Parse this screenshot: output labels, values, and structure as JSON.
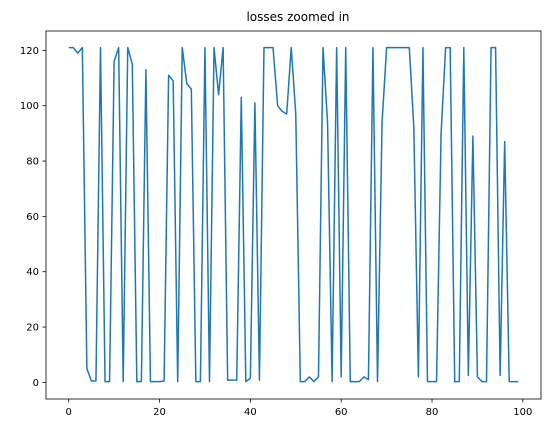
{
  "chart_data": {
    "type": "line",
    "title": "losses zoomed in",
    "xlabel": "",
    "ylabel": "",
    "xlim": [
      -5,
      104
    ],
    "ylim": [
      -6,
      127
    ],
    "xticks": [
      0,
      20,
      40,
      60,
      80,
      100
    ],
    "yticks": [
      0,
      20,
      40,
      60,
      80,
      100,
      120
    ],
    "grid": false,
    "legend": null,
    "series": [
      {
        "color": "#1f77b4",
        "x": [
          0,
          1,
          2,
          3,
          4,
          5,
          6,
          7,
          8,
          9,
          10,
          11,
          12,
          13,
          14,
          15,
          16,
          17,
          18,
          19,
          20,
          21,
          22,
          23,
          24,
          25,
          26,
          27,
          28,
          29,
          30,
          31,
          32,
          33,
          34,
          35,
          36,
          37,
          38,
          39,
          40,
          41,
          42,
          43,
          44,
          45,
          46,
          47,
          48,
          49,
          50,
          51,
          52,
          53,
          54,
          55,
          56,
          57,
          58,
          59,
          60,
          61,
          62,
          63,
          64,
          65,
          66,
          67,
          68,
          69,
          70,
          71,
          72,
          73,
          74,
          75,
          76,
          77,
          78,
          79,
          80,
          81,
          82,
          83,
          84,
          85,
          86,
          87,
          88,
          89,
          90,
          91,
          92,
          93,
          94,
          95,
          96,
          97,
          98,
          99
        ],
        "y": [
          121,
          121,
          119,
          121,
          5,
          0.5,
          0.5,
          121,
          0.3,
          0.3,
          116,
          121,
          0.3,
          121,
          115,
          0.3,
          0.3,
          113,
          0.3,
          0.3,
          0.3,
          0.5,
          111,
          109,
          0.3,
          121,
          108,
          106,
          0.3,
          0.3,
          121,
          0.3,
          121,
          104,
          121,
          0.8,
          0.8,
          0.8,
          103,
          0.3,
          1.5,
          101,
          0.8,
          121,
          121,
          121,
          100,
          98,
          97,
          121,
          97,
          0.3,
          0.3,
          2,
          0.3,
          2,
          121,
          94,
          0.3,
          121,
          2,
          121,
          0.3,
          0.3,
          0.3,
          2,
          1,
          121,
          0.3,
          94,
          121,
          121,
          121,
          121,
          121,
          121,
          92,
          2,
          121,
          0.3,
          0.3,
          0.3,
          90,
          121,
          121,
          0.3,
          0.3,
          121,
          2.5,
          89,
          2,
          0.3,
          0.3,
          121,
          121,
          2.5,
          87,
          0.3,
          0.3,
          0.3
        ]
      }
    ]
  }
}
